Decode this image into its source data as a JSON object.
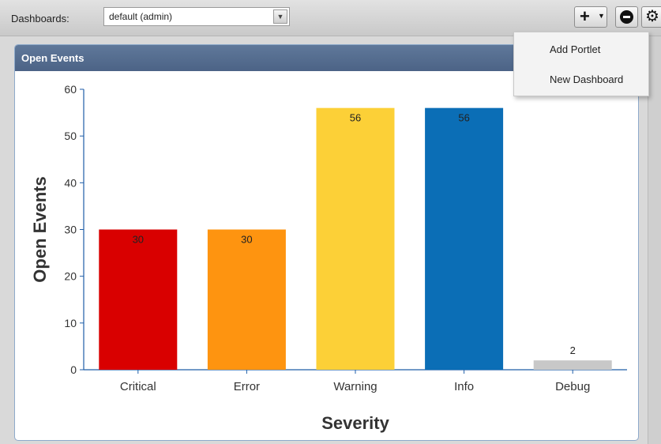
{
  "toolbar": {
    "dashboards_label": "Dashboards:",
    "dashboard_selected": "default (admin)"
  },
  "menu": {
    "items": [
      {
        "label": "Add Portlet"
      },
      {
        "label": "New Dashboard"
      }
    ]
  },
  "portlet": {
    "title": "Open Events"
  },
  "chart_data": {
    "type": "bar",
    "categories": [
      "Critical",
      "Error",
      "Warning",
      "Info",
      "Debug"
    ],
    "values": [
      30,
      30,
      56,
      56,
      2
    ],
    "colors": [
      "#d90000",
      "#fe9410",
      "#fcd037",
      "#0b6eb6",
      "#c8c8c8"
    ],
    "data_labels": [
      "30",
      "30",
      "56",
      "56",
      "2"
    ],
    "xlabel": "Severity",
    "ylabel": "Open Events",
    "ylim": [
      0,
      60
    ],
    "yticks": [
      "0",
      "10",
      "20",
      "30",
      "40",
      "50",
      "60"
    ]
  },
  "colors": {
    "header": "#536c8f",
    "axis": "#1f5ea8"
  }
}
